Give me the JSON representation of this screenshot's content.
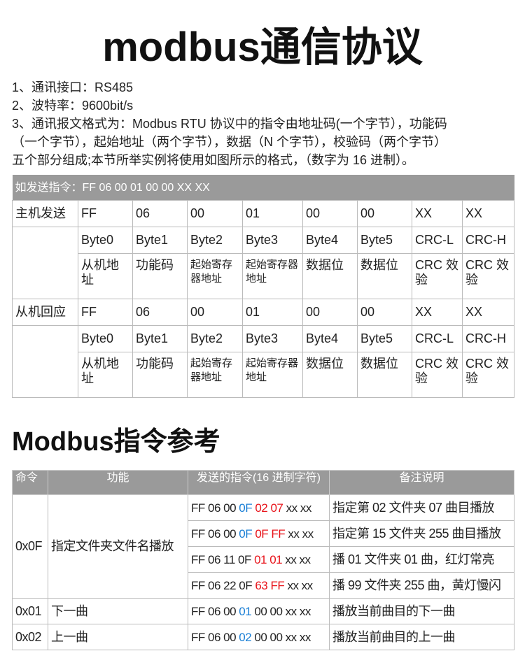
{
  "title": "modbus通信协议",
  "intro": [
    "1、通讯接口：RS485",
    "2、波特率：9600bit/s",
    "3、通讯报文格式为：Modbus RTU 协议中的指令由地址码(一个字节），功能码",
    "（一个字节），起始地址（两个字节），数据（N 个字节），校验码（两个字节）",
    "五个部分组成;本节所举实例将使用如图所示的格式，（数字为 16 进制）。"
  ],
  "frame_table": {
    "header": "如发送指令：FF 06 00 01 00 00 XX XX",
    "blocks": [
      {
        "label": "主机发送",
        "values": [
          "FF",
          "06",
          "00",
          "01",
          "00",
          "00",
          "XX",
          "XX"
        ]
      },
      {
        "label": "从机回应",
        "values": [
          "FF",
          "06",
          "00",
          "01",
          "00",
          "00",
          "XX",
          "XX"
        ]
      }
    ],
    "bytes": [
      "Byte0",
      "Byte1",
      "Byte2",
      "Byte3",
      "Byte4",
      "Byte5",
      "CRC-L",
      "CRC-H"
    ],
    "meanings": [
      "从机地址",
      "功能码",
      "起始寄存器地址",
      "起始寄存器地址",
      "数据位",
      "数据位",
      "CRC 效验",
      "CRC 效验"
    ]
  },
  "reference_title": "Modbus指令参考",
  "colors": {
    "header_bg": "#9a9a9a",
    "blue": "#1a7fd6",
    "red": "#e8141b"
  },
  "ref_table": {
    "columns": [
      "命令",
      "功能",
      "发送的指令(16 进制字符)",
      "备注说明"
    ],
    "groups": [
      {
        "cmd": "0x0F",
        "func": "指定文件夹文件名播放",
        "rows": [
          {
            "segments": [
              {
                "t": "FF 06 00 ",
                "c": ""
              },
              {
                "t": "0F ",
                "c": "blue"
              },
              {
                "t": "02 07",
                "c": "red"
              },
              {
                "t": " xx xx",
                "c": ""
              }
            ],
            "note": "指定第 02 文件夹 07 曲目播放"
          },
          {
            "segments": [
              {
                "t": "FF 06 00 ",
                "c": ""
              },
              {
                "t": "0F ",
                "c": "blue"
              },
              {
                "t": "0F FF",
                "c": "red"
              },
              {
                "t": " xx xx",
                "c": ""
              }
            ],
            "note": "指定第 15 文件夹 255 曲目播放"
          },
          {
            "segments": [
              {
                "t": "FF 06 11 0F ",
                "c": ""
              },
              {
                "t": "01 01",
                "c": "red"
              },
              {
                "t": " xx xx",
                "c": ""
              }
            ],
            "note": "播 01 文件夹 01 曲，红灯常亮"
          },
          {
            "segments": [
              {
                "t": "FF 06 22 0F ",
                "c": ""
              },
              {
                "t": "63 FF",
                "c": "red"
              },
              {
                "t": " xx xx",
                "c": ""
              }
            ],
            "note": "播 99 文件夹 255 曲，黄灯慢闪"
          }
        ]
      },
      {
        "cmd": "0x01",
        "func": "下一曲",
        "rows": [
          {
            "segments": [
              {
                "t": "FF 06 00 ",
                "c": ""
              },
              {
                "t": "01",
                "c": "blue"
              },
              {
                "t": " 00 00 xx xx",
                "c": ""
              }
            ],
            "note": "播放当前曲目的下一曲"
          }
        ]
      },
      {
        "cmd": "0x02",
        "func": "上一曲",
        "rows": [
          {
            "segments": [
              {
                "t": "FF 06 00 ",
                "c": ""
              },
              {
                "t": "02",
                "c": "blue"
              },
              {
                "t": " 00 00 xx xx",
                "c": ""
              }
            ],
            "note": "播放当前曲目的上一曲"
          }
        ]
      }
    ]
  }
}
